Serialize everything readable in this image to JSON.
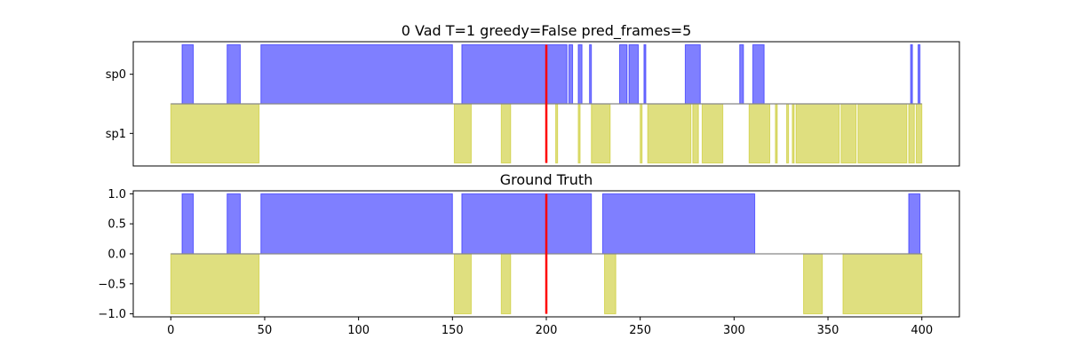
{
  "chart_data": [
    {
      "type": "area",
      "title": "0 Vad T=1 greedy=False pred_frames=5",
      "xlim": [
        -20,
        420
      ],
      "yticks": [
        {
          "label": "sp0",
          "y": 0.5
        },
        {
          "label": "sp1",
          "y": -0.5
        }
      ],
      "ylim": [
        -1.05,
        1.05
      ],
      "marker_x": 200,
      "colors": {
        "positive": "#0000ff",
        "negative": "#bfbf00",
        "marker": "#ff0000"
      },
      "series": [
        {
          "sign": 1,
          "segments": [
            [
              6,
              12
            ],
            [
              30,
              37
            ],
            [
              48,
              150
            ],
            [
              155,
              211
            ],
            [
              212,
              214
            ],
            [
              217,
              219
            ],
            [
              223,
              224
            ],
            [
              239,
              243
            ],
            [
              244,
              249
            ],
            [
              252,
              253
            ],
            [
              274,
              282
            ],
            [
              303,
              305
            ],
            [
              310,
              316
            ],
            [
              394,
              395
            ],
            [
              398,
              399
            ]
          ]
        },
        {
          "sign": -1,
          "segments": [
            [
              0,
              47
            ],
            [
              151,
              160
            ],
            [
              176,
              181
            ],
            [
              205,
              206
            ],
            [
              217,
              218
            ],
            [
              224,
              234
            ],
            [
              250,
              251
            ],
            [
              254,
              277
            ],
            [
              278,
              281
            ],
            [
              283,
              294
            ],
            [
              308,
              319
            ],
            [
              322,
              323
            ],
            [
              328,
              329
            ],
            [
              331,
              332
            ],
            [
              333,
              356
            ],
            [
              357,
              365
            ],
            [
              366,
              392
            ],
            [
              393,
              396
            ],
            [
              397,
              400
            ]
          ]
        }
      ]
    },
    {
      "type": "area",
      "title": "Ground Truth",
      "xlim": [
        -20,
        420
      ],
      "ylim": [
        -1.05,
        1.05
      ],
      "xticks": [
        0,
        50,
        100,
        150,
        200,
        250,
        300,
        350,
        400
      ],
      "yticks": [
        1.0,
        0.5,
        0.0,
        -0.5,
        -1.0
      ],
      "ytick_labels": [
        "1.0",
        "0.5",
        "0.0",
        "−0.5",
        "−1.0"
      ],
      "marker_x": 200,
      "colors": {
        "positive": "#0000ff",
        "negative": "#bfbf00",
        "marker": "#ff0000"
      },
      "series": [
        {
          "sign": 1,
          "segments": [
            [
              6,
              12
            ],
            [
              30,
              37
            ],
            [
              48,
              150
            ],
            [
              155,
              224
            ],
            [
              230,
              311
            ],
            [
              393,
              399
            ]
          ]
        },
        {
          "sign": -1,
          "segments": [
            [
              0,
              47
            ],
            [
              151,
              160
            ],
            [
              176,
              181
            ],
            [
              231,
              237
            ],
            [
              337,
              347
            ],
            [
              358,
              400
            ]
          ]
        }
      ]
    }
  ]
}
